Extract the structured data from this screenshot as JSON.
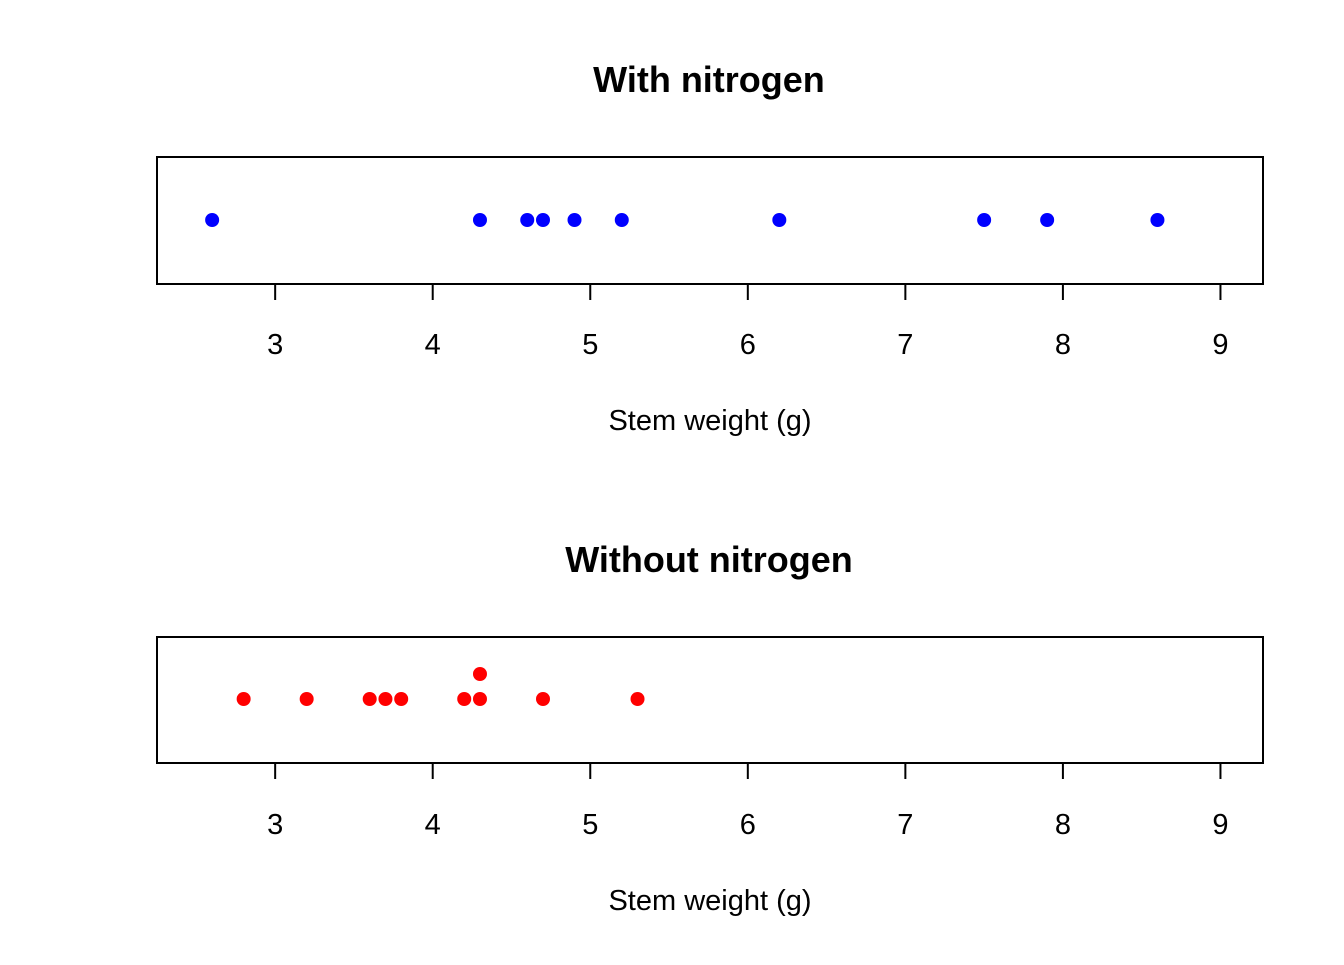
{
  "chart_data": [
    {
      "type": "scatter",
      "title": "With nitrogen",
      "xlabel": "Stem weight (g)",
      "ylabel": "",
      "xlim": [
        2.25,
        9.27
      ],
      "xticks": [
        3,
        4,
        5,
        6,
        7,
        8,
        9
      ],
      "tick_labels": [
        "3",
        "4",
        "5",
        "6",
        "7",
        "8",
        "9"
      ],
      "grid": false,
      "legend": "none",
      "series": [
        {
          "color": "#0000ff",
          "points": [
            {
              "x": 2.6,
              "stack": 0
            },
            {
              "x": 4.3,
              "stack": 0
            },
            {
              "x": 4.6,
              "stack": 0
            },
            {
              "x": 4.7,
              "stack": 0
            },
            {
              "x": 4.9,
              "stack": 0
            },
            {
              "x": 5.2,
              "stack": 0
            },
            {
              "x": 6.2,
              "stack": 0
            },
            {
              "x": 7.5,
              "stack": 0
            },
            {
              "x": 7.9,
              "stack": 0
            },
            {
              "x": 8.6,
              "stack": 0
            }
          ]
        }
      ]
    },
    {
      "type": "scatter",
      "title": "Without nitrogen",
      "xlabel": "Stem weight (g)",
      "ylabel": "",
      "xlim": [
        2.25,
        9.27
      ],
      "xticks": [
        3,
        4,
        5,
        6,
        7,
        8,
        9
      ],
      "tick_labels": [
        "3",
        "4",
        "5",
        "6",
        "7",
        "8",
        "9"
      ],
      "grid": false,
      "legend": "none",
      "series": [
        {
          "color": "#ff0000",
          "points": [
            {
              "x": 2.8,
              "stack": 0
            },
            {
              "x": 3.2,
              "stack": 0
            },
            {
              "x": 3.6,
              "stack": 0
            },
            {
              "x": 3.7,
              "stack": 0
            },
            {
              "x": 3.8,
              "stack": 0
            },
            {
              "x": 4.2,
              "stack": 0
            },
            {
              "x": 4.3,
              "stack": 0
            },
            {
              "x": 4.3,
              "stack": 1
            },
            {
              "x": 4.7,
              "stack": 0
            },
            {
              "x": 5.3,
              "stack": 0
            }
          ]
        }
      ]
    }
  ]
}
